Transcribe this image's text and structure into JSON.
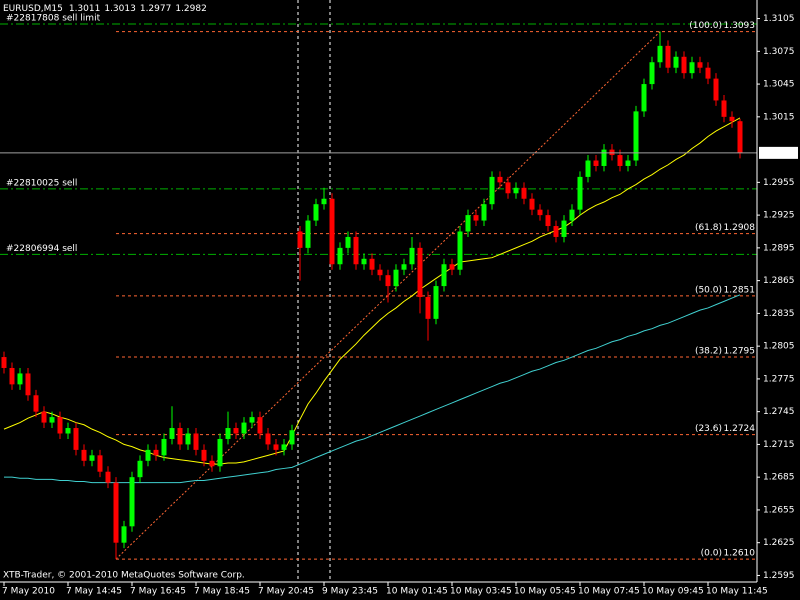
{
  "chart_data": {
    "type": "candlestick",
    "title": "EURUSD,M15",
    "header_values": [
      1.3011,
      1.3013,
      1.2977,
      1.2982
    ],
    "footer": "XTB-Trader, © 2001-2010 MetaQuotes Software Corp.",
    "categories": [
      "7 May 2010",
      null,
      null,
      null,
      null,
      null,
      null,
      null,
      "7 May 14:45",
      null,
      null,
      null,
      null,
      null,
      null,
      null,
      "7 May 16:45",
      null,
      null,
      null,
      null,
      null,
      null,
      null,
      "7 May 18:45",
      null,
      null,
      null,
      null,
      null,
      null,
      null,
      "7 May 20:45",
      null,
      null,
      null,
      null,
      null,
      null,
      null,
      "9 May 23:45",
      null,
      null,
      null,
      null,
      null,
      null,
      null,
      "10 May 01:45",
      null,
      null,
      null,
      null,
      null,
      null,
      null,
      "10 May 03:45",
      null,
      null,
      null,
      null,
      null,
      null,
      null,
      "10 May 05:45",
      null,
      null,
      null,
      null,
      null,
      null,
      null,
      "10 May 07:45",
      null,
      null,
      null,
      null,
      null,
      null,
      null,
      "10 May 09:45",
      null,
      null,
      null,
      null,
      null,
      null,
      null,
      "10 May 11:45",
      null,
      null,
      null,
      null
    ],
    "open": [
      1.2795,
      1.2785,
      1.277,
      1.278,
      1.276,
      1.2745,
      1.2735,
      1.274,
      1.2725,
      1.273,
      1.271,
      1.27,
      1.2705,
      1.269,
      1.268,
      1.2625,
      1.264,
      1.2685,
      1.27,
      1.271,
      1.2705,
      1.272,
      1.273,
      1.2715,
      1.2725,
      1.271,
      1.27,
      1.2695,
      1.272,
      1.273,
      1.2725,
      1.2735,
      1.274,
      1.2725,
      1.2715,
      1.271,
      1.2715,
      1.291,
      1.2895,
      1.292,
      1.2935,
      1.294,
      1.288,
      1.2895,
      1.2905,
      1.288,
      1.2885,
      1.2875,
      1.287,
      1.286,
      1.2875,
      1.288,
      1.2895,
      1.285,
      1.283,
      1.286,
      1.288,
      1.2875,
      1.291,
      1.2925,
      1.292,
      1.2935,
      1.296,
      1.2955,
      1.2945,
      1.295,
      1.294,
      1.293,
      1.2925,
      1.2915,
      1.2905,
      1.292,
      1.293,
      1.296,
      1.2975,
      1.297,
      1.2985,
      1.298,
      1.297,
      1.2975,
      1.302,
      1.3045,
      1.3065,
      1.308,
      1.306,
      1.307,
      1.3055,
      1.3065,
      1.306,
      1.305,
      1.303,
      1.3015,
      1.3011
    ],
    "high": [
      1.28,
      1.279,
      1.2785,
      1.2785,
      1.2765,
      1.275,
      1.2745,
      1.2745,
      1.2735,
      1.2735,
      1.2715,
      1.271,
      1.271,
      1.2695,
      1.2685,
      1.2645,
      1.269,
      1.2705,
      1.2715,
      1.2715,
      1.2725,
      1.275,
      1.2735,
      1.273,
      1.273,
      1.2715,
      1.2705,
      1.2725,
      1.2745,
      1.2735,
      1.274,
      1.2745,
      1.2745,
      1.273,
      1.272,
      1.272,
      1.2733,
      1.2915,
      1.2925,
      1.294,
      1.295,
      1.2945,
      1.29,
      1.291,
      1.291,
      1.289,
      1.289,
      1.288,
      1.2875,
      1.288,
      1.2885,
      1.2905,
      1.29,
      1.2855,
      1.2865,
      1.2885,
      1.2885,
      1.2915,
      1.293,
      1.293,
      1.294,
      1.2965,
      1.2965,
      1.296,
      1.2955,
      1.2955,
      1.2945,
      1.2935,
      1.293,
      1.292,
      1.2925,
      1.2935,
      1.2965,
      1.298,
      1.298,
      1.299,
      1.299,
      1.2985,
      1.298,
      1.3025,
      1.305,
      1.307,
      1.3093,
      1.3085,
      1.3075,
      1.3075,
      1.307,
      1.307,
      1.3065,
      1.3055,
      1.3035,
      1.302,
      1.3013
    ],
    "low": [
      1.278,
      1.2765,
      1.2765,
      1.2755,
      1.274,
      1.273,
      1.273,
      1.272,
      1.272,
      1.2705,
      1.2695,
      1.2695,
      1.2685,
      1.2675,
      1.261,
      1.262,
      1.2635,
      1.268,
      1.2695,
      1.27,
      1.27,
      1.2715,
      1.271,
      1.271,
      1.2705,
      1.2695,
      1.269,
      1.269,
      1.2715,
      1.272,
      1.272,
      1.273,
      1.272,
      1.271,
      1.2705,
      1.2705,
      1.271,
      1.2865,
      1.289,
      1.2915,
      1.293,
      1.2875,
      1.2875,
      1.289,
      1.2875,
      1.2875,
      1.287,
      1.2865,
      1.2845,
      1.2855,
      1.287,
      1.2875,
      1.2835,
      1.281,
      1.2825,
      1.2855,
      1.287,
      1.287,
      1.2905,
      1.2915,
      1.2915,
      1.293,
      1.295,
      1.294,
      1.294,
      1.2935,
      1.2925,
      1.292,
      1.291,
      1.29,
      1.29,
      1.2915,
      1.2925,
      1.2955,
      1.2965,
      1.2965,
      1.2975,
      1.2965,
      1.2965,
      1.297,
      1.3015,
      1.304,
      1.306,
      1.3055,
      1.3055,
      1.305,
      1.305,
      1.3055,
      1.3045,
      1.3025,
      1.301,
      1.3005,
      1.2977
    ],
    "close": [
      1.2785,
      1.277,
      1.278,
      1.276,
      1.2745,
      1.2735,
      1.274,
      1.2725,
      1.273,
      1.271,
      1.27,
      1.2705,
      1.269,
      1.268,
      1.2625,
      1.264,
      1.2685,
      1.27,
      1.271,
      1.2705,
      1.272,
      1.273,
      1.2715,
      1.2725,
      1.271,
      1.27,
      1.2695,
      1.272,
      1.273,
      1.2725,
      1.2735,
      1.274,
      1.2725,
      1.2715,
      1.271,
      1.2715,
      1.2728,
      1.2895,
      1.292,
      1.2935,
      1.294,
      1.288,
      1.2895,
      1.2905,
      1.288,
      1.2885,
      1.2875,
      1.287,
      1.286,
      1.2875,
      1.288,
      1.2895,
      1.285,
      1.283,
      1.286,
      1.288,
      1.2875,
      1.291,
      1.2925,
      1.292,
      1.2935,
      1.296,
      1.2955,
      1.2945,
      1.295,
      1.294,
      1.293,
      1.2925,
      1.2915,
      1.2905,
      1.292,
      1.293,
      1.296,
      1.2975,
      1.297,
      1.2985,
      1.298,
      1.297,
      1.2975,
      1.302,
      1.3045,
      1.3065,
      1.308,
      1.306,
      1.307,
      1.3055,
      1.3065,
      1.306,
      1.305,
      1.303,
      1.3015,
      1.3011,
      1.2982
    ],
    "up_color": "#00ff00",
    "down_color": "#ff0000",
    "moving_averages": [
      {
        "color": "#ffff00",
        "values": [
          1.2729,
          1.2732,
          1.2735,
          1.2739,
          1.2742,
          1.2745,
          1.2743,
          1.274,
          1.2738,
          1.2735,
          1.2733,
          1.2729,
          1.2726,
          1.2722,
          1.2719,
          1.2715,
          1.2713,
          1.271,
          1.2708,
          1.2705,
          1.2703,
          1.2702,
          1.2701,
          1.27,
          1.2699,
          1.2698,
          1.2697,
          1.2697,
          1.2698,
          1.2698,
          1.2699,
          1.2701,
          1.2703,
          1.2705,
          1.2707,
          1.2709,
          1.2723,
          1.2738,
          1.2752,
          1.2762,
          1.2773,
          1.2783,
          1.2793,
          1.28,
          1.2807,
          1.2815,
          1.2822,
          1.2829,
          1.2835,
          1.284,
          1.2846,
          1.2851,
          1.2857,
          1.2862,
          1.2867,
          1.2872,
          1.2877,
          1.2882,
          1.2883,
          1.2884,
          1.2885,
          1.2886,
          1.2889,
          1.2892,
          1.2895,
          1.2898,
          1.2901,
          1.2905,
          1.2908,
          1.2911,
          1.2914,
          1.2919,
          1.2925,
          1.293,
          1.2934,
          1.2937,
          1.2941,
          1.2944,
          1.2949,
          1.2953,
          1.2958,
          1.2962,
          1.2967,
          1.2971,
          1.2976,
          1.298,
          1.2986,
          1.2991,
          1.2997,
          1.3002,
          1.3006,
          1.301,
          1.3014
        ]
      },
      {
        "color": "#40d0d0",
        "values": [
          1.2685,
          1.2685,
          1.2684,
          1.2684,
          1.2683,
          1.2683,
          1.2683,
          1.2682,
          1.2682,
          1.2681,
          1.2681,
          1.268,
          1.268,
          1.268,
          1.268,
          1.268,
          1.268,
          1.268,
          1.268,
          1.268,
          1.268,
          1.268,
          1.268,
          1.2681,
          1.2682,
          1.2682,
          1.2683,
          1.2684,
          1.2685,
          1.2686,
          1.2687,
          1.2688,
          1.2689,
          1.269,
          1.2692,
          1.2693,
          1.2694,
          1.2697,
          1.27,
          1.2703,
          1.2706,
          1.2709,
          1.2712,
          1.2715,
          1.2718,
          1.272,
          1.2723,
          1.2726,
          1.2729,
          1.2732,
          1.2735,
          1.2738,
          1.2741,
          1.2744,
          1.2747,
          1.275,
          1.2753,
          1.2756,
          1.2759,
          1.2762,
          1.2765,
          1.2768,
          1.2771,
          1.2773,
          1.2776,
          1.2779,
          1.2782,
          1.2784,
          1.2787,
          1.279,
          1.2792,
          1.2795,
          1.2798,
          1.2801,
          1.2803,
          1.2806,
          1.2809,
          1.2811,
          1.2814,
          1.2816,
          1.2819,
          1.2821,
          1.2824,
          1.2826,
          1.2829,
          1.2832,
          1.2835,
          1.2838,
          1.284,
          1.2843,
          1.2846,
          1.2849,
          1.2852
        ]
      }
    ],
    "fibonacci_color": "#ff6633",
    "fibonacci": [
      {
        "label": "(100.0)",
        "price": 1.3093
      },
      {
        "label": "(61.8)",
        "price": 1.2908
      },
      {
        "label": "(50.0)",
        "price": 1.2851
      },
      {
        "label": "(38.2)",
        "price": 1.2795
      },
      {
        "label": "(23.6)",
        "price": 1.2724
      },
      {
        "label": "(0.0)",
        "price": {
          "value": 1.261,
          "label": "1.2610"
        }
      }
    ],
    "order_color": "#00b000",
    "orders": [
      {
        "label": "#22817808 sell limit",
        "price": 1.31
      },
      {
        "label": "#22810025 sell",
        "price": 1.2949
      },
      {
        "label": "#22806994 sell",
        "price": 1.2889
      }
    ],
    "bid": 1.2982,
    "ylim": [
      1.2589,
      1.3122
    ],
    "yticks": [
      1.3105,
      1.3075,
      1.3045,
      1.3015,
      1.2955,
      1.2925,
      1.2895,
      1.2865,
      1.2835,
      1.2805,
      1.2775,
      1.2745,
      1.2715,
      1.2685,
      1.2655,
      1.2625,
      1.2595
    ]
  }
}
